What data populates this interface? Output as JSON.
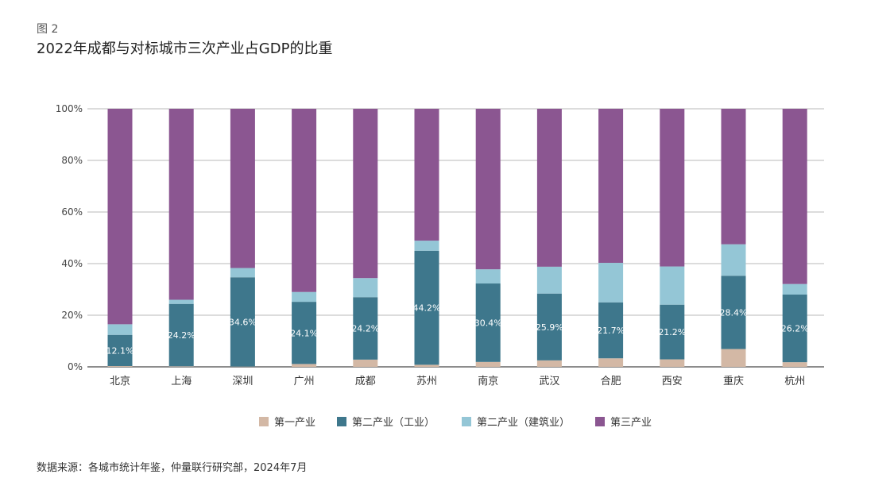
{
  "figure": {
    "label": "图 2",
    "title": "2022年成都与对标城市三次产业占GDP的比重",
    "source": "数据来源：各城市统计年鉴，仲量联行研究部，2024年7月"
  },
  "colors": {
    "primary": "#d3b8a5",
    "industry": "#3e778c",
    "construction": "#94c6d6",
    "tertiary": "#8b5691",
    "gridline": "#b8b8b8",
    "axis": "#666666"
  },
  "chart_data": {
    "type": "bar",
    "stacked": true,
    "categories": [
      "北京",
      "上海",
      "深圳",
      "广州",
      "成都",
      "苏州",
      "南京",
      "武汉",
      "合肥",
      "西安",
      "重庆",
      "杭州"
    ],
    "yticks": [
      "0%",
      "20%",
      "40%",
      "60%",
      "80%",
      "100%"
    ],
    "ylim": [
      0,
      100
    ],
    "legend_position": "bottom",
    "grid": true,
    "series": [
      {
        "name": "第一产业",
        "color_key": "primary",
        "values": [
          0.3,
          0.2,
          0.1,
          1.1,
          2.8,
          0.8,
          1.9,
          2.5,
          3.3,
          2.9,
          6.9,
          1.8
        ]
      },
      {
        "name": "第二产业（工业）",
        "color_key": "industry",
        "values": [
          12.1,
          24.2,
          34.6,
          24.1,
          24.2,
          44.2,
          30.4,
          25.9,
          21.7,
          21.2,
          28.4,
          26.2
        ],
        "labels": [
          "12.1%",
          "24.2%",
          "34.6%",
          "24.1%",
          "24.2%",
          "44.2%",
          "30.4%",
          "25.9%",
          "21.7%",
          "21.2%",
          "28.4%",
          "26.2%"
        ]
      },
      {
        "name": "第二产业（建筑业）",
        "color_key": "construction",
        "values": [
          4.1,
          1.6,
          3.6,
          3.8,
          7.4,
          3.9,
          5.5,
          10.4,
          15.3,
          14.8,
          12.2,
          4.1
        ]
      },
      {
        "name": "第三产业",
        "color_key": "tertiary",
        "values": [
          83.5,
          74.0,
          61.7,
          71.0,
          65.6,
          51.1,
          62.2,
          61.2,
          59.7,
          61.1,
          52.5,
          67.9
        ]
      }
    ]
  }
}
